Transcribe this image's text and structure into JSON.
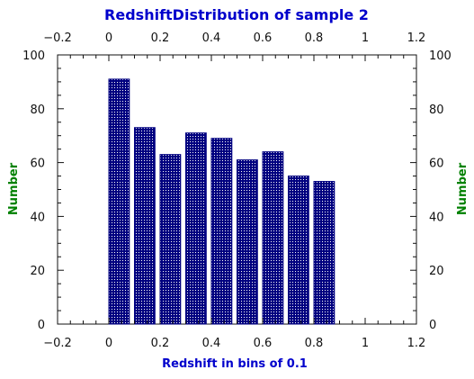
{
  "colors": {
    "title": "#0000cc",
    "xlabel": "#0000cc",
    "ylabel": "#008000",
    "bar_fill": "#000080",
    "bar_pattern": "#ffffff",
    "axis": "#111111"
  },
  "chart_data": {
    "type": "bar",
    "title": "RedshiftDistribution of sample 2",
    "xlabel": "Redshift in bins of 0.1",
    "ylabel": "Number",
    "xlim": [
      -0.2,
      1.2
    ],
    "ylim": [
      0,
      100
    ],
    "x_ticks": [
      "−0.2",
      "0",
      "0.2",
      "0.4",
      "0.6",
      "0.8",
      "1",
      "1.2"
    ],
    "x_tick_values": [
      -0.2,
      0,
      0.2,
      0.4,
      0.6,
      0.8,
      1.0,
      1.2
    ],
    "y_ticks": [
      "0",
      "20",
      "40",
      "60",
      "80",
      "100"
    ],
    "y_tick_values": [
      0,
      20,
      40,
      60,
      80,
      100
    ],
    "bin_width": 0.1,
    "bar_relative_width": 0.8,
    "bins": [
      {
        "x": 0.0,
        "value": 91
      },
      {
        "x": 0.1,
        "value": 73
      },
      {
        "x": 0.2,
        "value": 63
      },
      {
        "x": 0.3,
        "value": 71
      },
      {
        "x": 0.4,
        "value": 69
      },
      {
        "x": 0.5,
        "value": 61
      },
      {
        "x": 0.6,
        "value": 64
      },
      {
        "x": 0.7,
        "value": 55
      },
      {
        "x": 0.8,
        "value": 53
      }
    ],
    "grid": false,
    "mirror_axes": true,
    "bar_style": "dotted-pattern"
  }
}
